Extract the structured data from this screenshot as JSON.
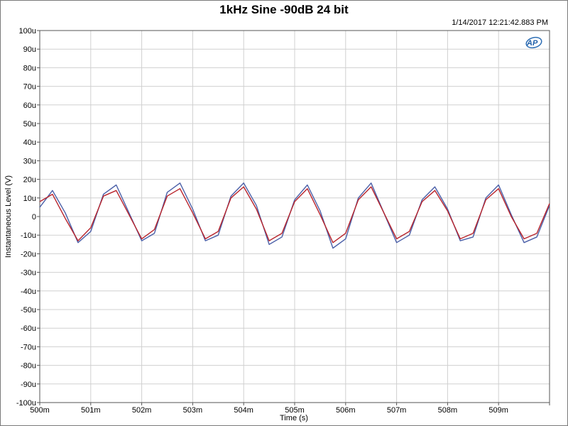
{
  "title": "1kHz Sine -90dB 24 bit",
  "timestamp": "1/14/2017 12:21:42.883 PM",
  "logo_text": "AP",
  "colors": {
    "series1": "#4a5fa8",
    "series2": "#b8242c",
    "grid": "#d0d0d0"
  },
  "chart_data": {
    "type": "line",
    "title": "1kHz Sine -90dB 24 bit",
    "xlabel": "Time (s)",
    "ylabel": "Instantaneous Level (V)",
    "xlim": [
      0.5,
      0.51
    ],
    "ylim": [
      -100,
      100
    ],
    "y_unit": "uV",
    "grid": true,
    "xticks": [
      "500m",
      "501m",
      "502m",
      "503m",
      "504m",
      "505m",
      "506m",
      "507m",
      "508m",
      "509m"
    ],
    "yticks": [
      "100u",
      "90u",
      "80u",
      "70u",
      "60u",
      "50u",
      "40u",
      "30u",
      "20u",
      "10u",
      "0",
      "-10u",
      "-20u",
      "-30u",
      "-40u",
      "-50u",
      "-60u",
      "-70u",
      "-80u",
      "-90u",
      "-100u"
    ],
    "series": [
      {
        "color": "#4a5fa8",
        "x": [
          0.5,
          0.50025,
          0.5005,
          0.50075,
          0.501,
          0.50125,
          0.5015,
          0.50175,
          0.502,
          0.50225,
          0.5025,
          0.50275,
          0.503,
          0.50325,
          0.5035,
          0.50375,
          0.504,
          0.50425,
          0.5045,
          0.50475,
          0.505,
          0.50525,
          0.5055,
          0.50575,
          0.506,
          0.50625,
          0.5065,
          0.50675,
          0.507,
          0.50725,
          0.5075,
          0.50775,
          0.508,
          0.50825,
          0.5085,
          0.50875,
          0.509,
          0.50925,
          0.5095,
          0.50975,
          0.51
        ],
        "y": [
          5,
          14,
          2,
          -14,
          -8,
          12,
          17,
          2,
          -13,
          -9,
          13,
          18,
          4,
          -13,
          -10,
          11,
          18,
          6,
          -15,
          -11,
          9,
          17,
          3,
          -17,
          -12,
          10,
          18,
          2,
          -14,
          -10,
          9,
          16,
          4,
          -13,
          -11,
          10,
          17,
          1,
          -14,
          -11,
          6
        ]
      },
      {
        "color": "#b8242c",
        "x": [
          0.5,
          0.50025,
          0.5005,
          0.50075,
          0.501,
          0.50125,
          0.5015,
          0.50175,
          0.502,
          0.50225,
          0.5025,
          0.50275,
          0.503,
          0.50325,
          0.5035,
          0.50375,
          0.504,
          0.50425,
          0.5045,
          0.50475,
          0.505,
          0.50525,
          0.5055,
          0.50575,
          0.506,
          0.50625,
          0.5065,
          0.50675,
          0.507,
          0.50725,
          0.5075,
          0.50775,
          0.508,
          0.50825,
          0.5085,
          0.50875,
          0.509,
          0.50925,
          0.5095,
          0.50975,
          0.51
        ],
        "y": [
          8,
          12,
          -1,
          -13,
          -6,
          11,
          14,
          1,
          -12,
          -7,
          11,
          15,
          2,
          -12,
          -8,
          10,
          16,
          4,
          -13,
          -9,
          8,
          15,
          1,
          -14,
          -9,
          9,
          16,
          2,
          -12,
          -8,
          8,
          14,
          3,
          -12,
          -9,
          9,
          15,
          0,
          -12,
          -9,
          7
        ]
      }
    ]
  }
}
